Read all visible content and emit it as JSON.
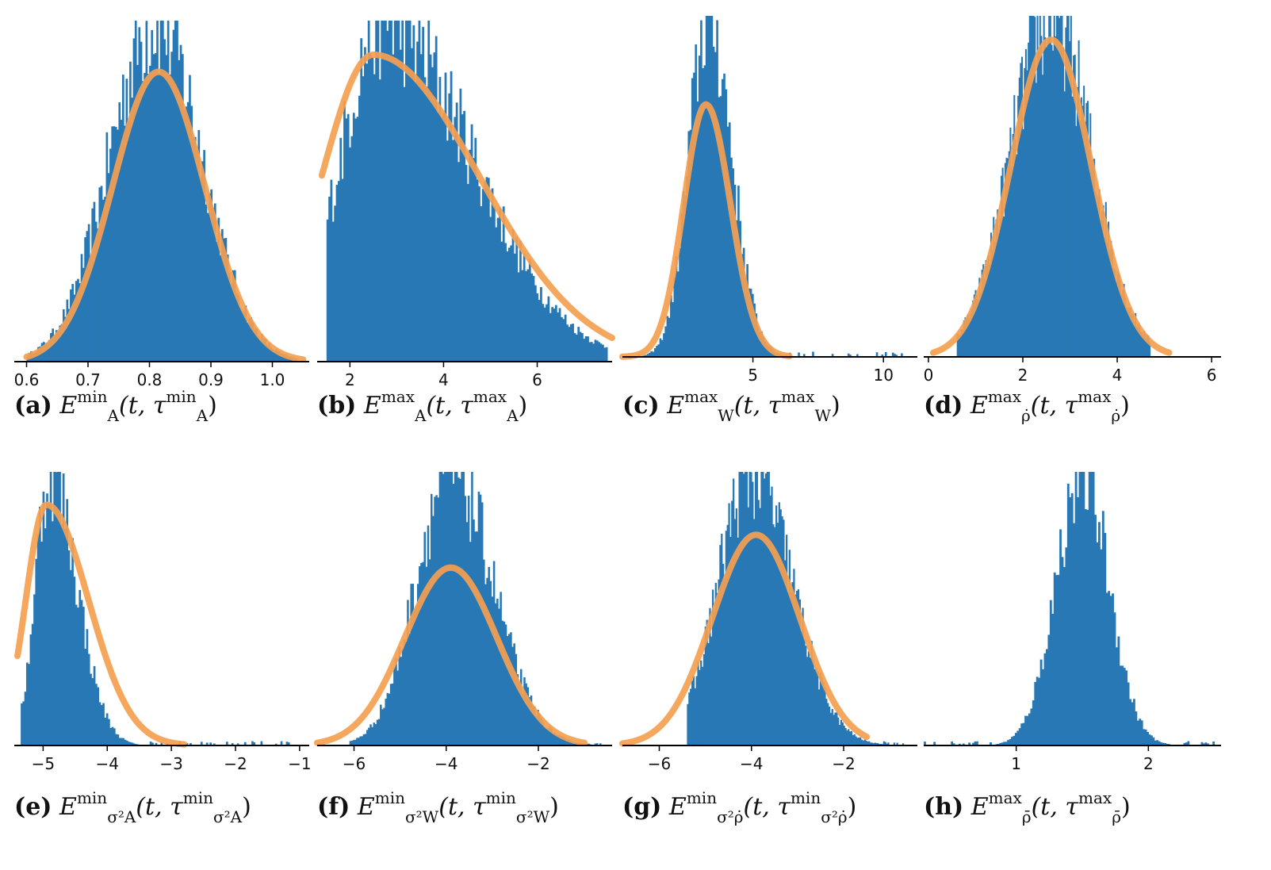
{
  "colors": {
    "hist": "#2878b5",
    "fit": "#f5a050",
    "axis": "#000000"
  },
  "chart_data": [
    {
      "id": "a",
      "type": "bar",
      "letter": "(a)",
      "caption_main": "E",
      "caption_sup": "min",
      "caption_sub": "A",
      "caption_args": "(t, τ",
      "caption_arg_sup": "min",
      "caption_arg_sub": "A",
      "xlim": [
        0.58,
        1.06
      ],
      "xticks": [
        0.6,
        0.7,
        0.8,
        0.9,
        1.0
      ],
      "xtick_labels": [
        "0.6",
        "0.7",
        "0.8",
        "0.9",
        "1.0"
      ],
      "hist": {
        "min": 0.6,
        "max": 1.04,
        "mode": 0.81,
        "sd": 0.075,
        "peak": 1.0,
        "skew": 0
      },
      "fit": {
        "mean": 0.815,
        "sd": 0.075,
        "skew": 0,
        "peak": 0.85,
        "from": 0.6,
        "to": 1.05
      }
    },
    {
      "id": "b",
      "type": "bar",
      "letter": "(b)",
      "caption_main": "E",
      "caption_sup": "max",
      "caption_sub": "A",
      "caption_args": "(t, τ",
      "caption_arg_sup": "max",
      "caption_arg_sub": "A",
      "xlim": [
        1.3,
        7.6
      ],
      "xticks": [
        2,
        4,
        6
      ],
      "xtick_labels": [
        "2",
        "4",
        "6"
      ],
      "hist": {
        "min": 1.5,
        "max": 7.5,
        "mode": 2.7,
        "sd": 0.9,
        "peak": 1.0,
        "skew": 3.2
      },
      "fit": {
        "mean": 2.5,
        "sd": 1.1,
        "skew": 3.0,
        "peak": 0.9,
        "from": 1.4,
        "to": 7.6
      }
    },
    {
      "id": "c",
      "type": "bar",
      "letter": "(c)",
      "caption_main": "E",
      "caption_sup": "max",
      "caption_sub": "W",
      "caption_args": "(t, τ",
      "caption_arg_sup": "max",
      "caption_arg_sub": "W",
      "xlim": [
        0.0,
        11.3
      ],
      "xticks": [
        5,
        10
      ],
      "xtick_labels": [
        "5",
        "10"
      ],
      "hist": {
        "min": 0.6,
        "max": 10.8,
        "mode": 3.3,
        "sd": 0.75,
        "peak": 1.0,
        "skew": 0.5
      },
      "fit": {
        "mean": 3.2,
        "sd": 0.85,
        "skew": 0.3,
        "peak": 0.74,
        "from": 0.0,
        "to": 6.4
      }
    },
    {
      "id": "d",
      "type": "bar",
      "letter": "(d)",
      "caption_main": "E",
      "caption_sup": "max",
      "caption_sub": "ρ̇",
      "caption_args": "(t, τ",
      "caption_arg_sup": "max",
      "caption_arg_sub": "ρ̇",
      "xlim": [
        -0.1,
        6.2
      ],
      "xticks": [
        0,
        2,
        4,
        6
      ],
      "xtick_labels": [
        "0",
        "2",
        "4",
        "6"
      ],
      "hist": {
        "min": 0.6,
        "max": 4.7,
        "mode": 2.6,
        "sd": 0.85,
        "peak": 1.0,
        "skew": 0
      },
      "fit": {
        "mean": 2.6,
        "sd": 0.85,
        "skew": 0,
        "peak": 0.93,
        "from": 0.1,
        "to": 5.1
      }
    },
    {
      "id": "e",
      "type": "bar",
      "letter": "(e)",
      "caption_main": "E",
      "caption_sup": "min",
      "caption_sub": "σ²A",
      "caption_args": "(t, τ",
      "caption_arg_sup": "min",
      "caption_arg_sub": "σ²A",
      "xlim": [
        -5.45,
        -0.85
      ],
      "xticks": [
        -5,
        -4,
        -3,
        -2,
        -1
      ],
      "xtick_labels": [
        "−5",
        "−4",
        "−3",
        "−2",
        "−1"
      ],
      "hist": {
        "min": -5.35,
        "max": -1.1,
        "mode": -4.9,
        "sd": 0.22,
        "peak": 1.0,
        "skew": 2.6
      },
      "fit": {
        "mean": -4.95,
        "sd": 0.32,
        "skew": 3.0,
        "peak": 0.88,
        "from": -5.4,
        "to": -2.8
      }
    },
    {
      "id": "f",
      "type": "bar",
      "letter": "(f)",
      "caption_main": "E",
      "caption_sup": "min",
      "caption_sub": "σ²W",
      "caption_args": "(t, τ",
      "caption_arg_sup": "min",
      "caption_arg_sub": "σ²W",
      "xlim": [
        -6.8,
        -0.4
      ],
      "xticks": [
        -6,
        -4,
        -2
      ],
      "xtick_labels": [
        "−6",
        "−4",
        "−2"
      ],
      "hist": {
        "min": -6.1,
        "max": -0.6,
        "mode": -3.9,
        "sd": 0.75,
        "peak": 1.0,
        "skew": 0.6
      },
      "fit": {
        "mean": -3.9,
        "sd": 1.0,
        "skew": 0,
        "peak": 0.65,
        "from": -6.8,
        "to": -1.0
      }
    },
    {
      "id": "g",
      "type": "bar",
      "letter": "(g)",
      "caption_main": "E",
      "caption_sup": "min",
      "caption_sub": "σ²ρ̇",
      "caption_args": "(t, τ",
      "caption_arg_sup": "min",
      "caption_arg_sub": "σ²ρ̇",
      "xlim": [
        -6.8,
        -0.4
      ],
      "xticks": [
        -6,
        -4,
        -2
      ],
      "xtick_labels": [
        "−6",
        "−4",
        "−2"
      ],
      "hist": {
        "min": -5.4,
        "max": -0.6,
        "mode": -4.0,
        "sd": 0.72,
        "peak": 1.0,
        "skew": 0.6
      },
      "fit": {
        "mean": -3.9,
        "sd": 0.95,
        "skew": 0,
        "peak": 0.77,
        "from": -6.8,
        "to": -1.5
      }
    },
    {
      "id": "h",
      "type": "bar",
      "letter": "(h)",
      "caption_main": "E",
      "caption_sup": "max",
      "caption_sub": "ρ̄",
      "caption_args": "(t, τ",
      "caption_arg_sup": "max",
      "caption_arg_sub": "ρ̄",
      "xlim": [
        0.3,
        2.55
      ],
      "xticks": [
        1,
        2
      ],
      "xtick_labels": [
        "1",
        "2"
      ],
      "hist": {
        "min": 0.3,
        "max": 2.5,
        "mode": 1.5,
        "sd": 0.2,
        "peak": 1.0,
        "skew": 0
      },
      "fit": null
    }
  ]
}
